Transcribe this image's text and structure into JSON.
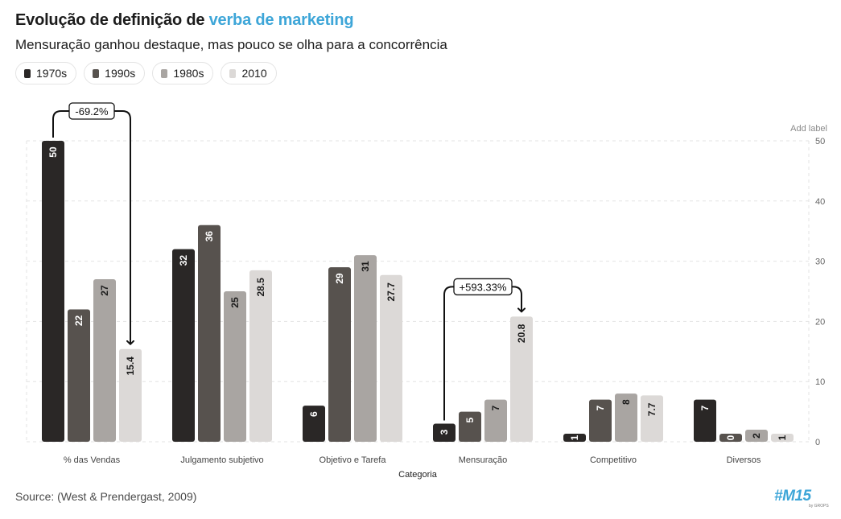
{
  "header": {
    "title_prefix": "Evolução de definição de ",
    "title_accent": "verba de marketing",
    "subtitle": "Mensuração ganhou destaque, mas pouco se olha para a concorrência"
  },
  "legend": [
    {
      "label": "1970s",
      "color": "#2a2726"
    },
    {
      "label": "1990s",
      "color": "#57524e"
    },
    {
      "label": "1980s",
      "color": "#a9a5a2"
    },
    {
      "label": "2010",
      "color": "#dcd9d7"
    }
  ],
  "footer": {
    "source": "Source: (West & Prendergast, 2009)",
    "brand": "#M15",
    "brand_sub": "by GROPS"
  },
  "colors": {
    "accent": "#3ea6d8",
    "grid": "#e3e3e3",
    "axis_text": "#666666"
  },
  "chart_data": {
    "type": "bar",
    "title": "Evolução de definição de verba de marketing",
    "subtitle": "Mensuração ganhou destaque, mas pouco se olha para a concorrência",
    "xlabel": "Categoria",
    "ylabel": "",
    "ylim": [
      0,
      50
    ],
    "yticks": [
      0,
      10,
      20,
      30,
      40,
      50
    ],
    "y_axis_position": "right",
    "y_axis_note": "Add label",
    "grid": true,
    "categories": [
      "% das Vendas",
      "Julgamento subjetivo",
      "Objetivo e Tarefa",
      "Mensuração",
      "Competitivo",
      "Diversos"
    ],
    "series": [
      {
        "name": "1970s",
        "color": "#2a2726",
        "values": [
          50,
          32,
          6,
          3,
          1,
          7
        ],
        "labels": [
          "50",
          "32",
          "6",
          "3",
          "1",
          "7"
        ]
      },
      {
        "name": "1990s",
        "color": "#57524e",
        "values": [
          22,
          36,
          29,
          5,
          7,
          0
        ],
        "labels": [
          "22",
          "36",
          "29",
          "5",
          "7",
          "0"
        ]
      },
      {
        "name": "1980s",
        "color": "#a9a5a2",
        "values": [
          27,
          25,
          31,
          7,
          8,
          2
        ],
        "labels": [
          "27",
          "25",
          "31",
          "7",
          "8",
          "2"
        ]
      },
      {
        "name": "2010",
        "color": "#dcd9d7",
        "values": [
          15.4,
          28.5,
          27.7,
          20.8,
          7.7,
          1
        ],
        "labels": [
          "15.4",
          "28.5",
          "27.7",
          "20.8",
          "7.7",
          "1"
        ]
      }
    ],
    "annotations": [
      {
        "text": "-69.2%",
        "category": "% das Vendas",
        "from_series": "1970s",
        "to_series": "2010"
      },
      {
        "text": "+593.33%",
        "category": "Mensuração",
        "from_series": "1970s",
        "to_series": "2010"
      }
    ]
  }
}
